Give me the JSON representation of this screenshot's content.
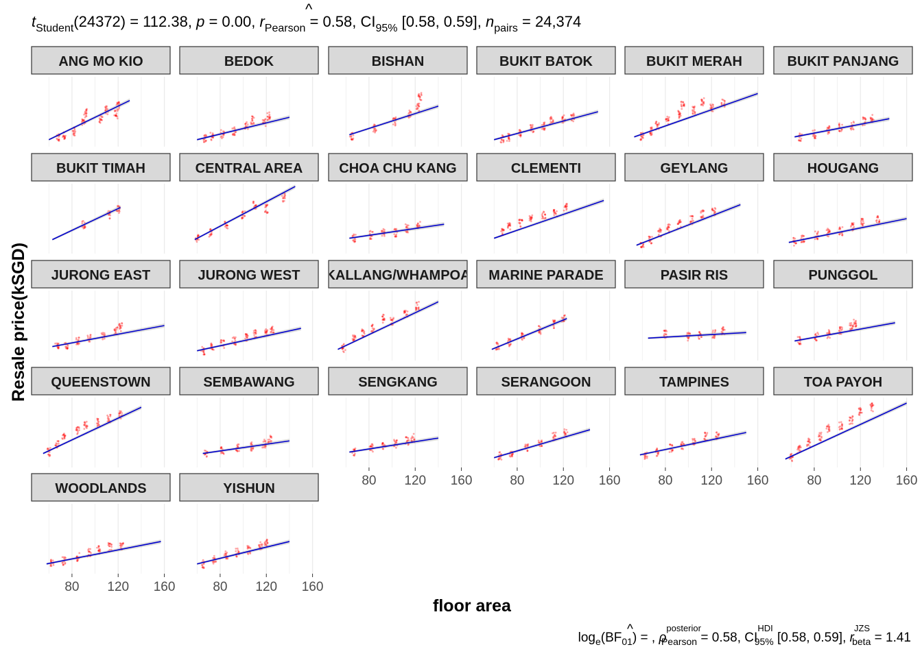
{
  "subtitle": {
    "t_symbol": "t",
    "t_sub": "Student",
    "part1": "(24372) = 112.38, ",
    "p_symbol": "p",
    "part2": " = 0.00, ",
    "r_symbol": "r",
    "r_hat": "^",
    "r_sub": "Pearson",
    "part3": " = 0.58, CI",
    "ci_sub": "95%",
    "part4": " [0.58, 0.59], ",
    "n_symbol": "n",
    "n_sub": "pairs",
    "part5": " = 24,374"
  },
  "caption": {
    "log_text": "log",
    "log_sub": "e",
    "bf_text": "(BF",
    "bf_sub": "01",
    "bf_rest": ") = , ",
    "rho_symbol": "ρ",
    "rho_hat": "^",
    "rho_sup": "posterior",
    "rho_sub": "Pearson",
    "part2": " = 0.58, CI",
    "ci_sup": "HDI",
    "ci_sub": "95%",
    "part3": " [0.58, 0.59], ",
    "r_symbol": "r",
    "r_sup": "JZS",
    "r_sub": "beta",
    "part4": " = 1.41"
  },
  "chart_data": {
    "type": "scatter",
    "xlabel": "floor area",
    "ylabel": "Resale price(kSGD)",
    "xlim": [
      45,
      165
    ],
    "x_ticks": [
      80,
      120,
      160
    ],
    "ylim": [
      0,
      1
    ],
    "point_color": "#ff0000",
    "line_color": "#0000cc",
    "strip_fill": "#d9d9d9",
    "grid_color": "#ebebeb",
    "facets": [
      {
        "name": "ANG MO KIO",
        "fit": {
          "x": [
            60,
            130
          ],
          "y": [
            0.1,
            0.66
          ]
        },
        "clusters": [
          {
            "x": 68,
            "y": 0.12
          },
          {
            "x": 73,
            "y": 0.16
          },
          {
            "x": 82,
            "y": 0.22
          },
          {
            "x": 90,
            "y": 0.34
          },
          {
            "x": 92,
            "y": 0.48
          },
          {
            "x": 105,
            "y": 0.4
          },
          {
            "x": 110,
            "y": 0.52
          },
          {
            "x": 118,
            "y": 0.46
          },
          {
            "x": 120,
            "y": 0.58
          }
        ]
      },
      {
        "name": "BEDOK",
        "fit": {
          "x": [
            60,
            140
          ],
          "y": [
            0.1,
            0.42
          ]
        },
        "clusters": [
          {
            "x": 67,
            "y": 0.12
          },
          {
            "x": 73,
            "y": 0.14
          },
          {
            "x": 82,
            "y": 0.18
          },
          {
            "x": 92,
            "y": 0.22
          },
          {
            "x": 103,
            "y": 0.3
          },
          {
            "x": 108,
            "y": 0.38
          },
          {
            "x": 118,
            "y": 0.34
          },
          {
            "x": 122,
            "y": 0.44
          }
        ]
      },
      {
        "name": "BISHAN",
        "fit": {
          "x": [
            63,
            140
          ],
          "y": [
            0.17,
            0.58
          ]
        },
        "clusters": [
          {
            "x": 65,
            "y": 0.16
          },
          {
            "x": 85,
            "y": 0.26
          },
          {
            "x": 102,
            "y": 0.36
          },
          {
            "x": 115,
            "y": 0.46
          },
          {
            "x": 122,
            "y": 0.56
          },
          {
            "x": 124,
            "y": 0.72
          }
        ]
      },
      {
        "name": "BUKIT BATOK",
        "fit": {
          "x": [
            60,
            150
          ],
          "y": [
            0.1,
            0.5
          ]
        },
        "clusters": [
          {
            "x": 67,
            "y": 0.11
          },
          {
            "x": 72,
            "y": 0.14
          },
          {
            "x": 83,
            "y": 0.2
          },
          {
            "x": 93,
            "y": 0.26
          },
          {
            "x": 103,
            "y": 0.3
          },
          {
            "x": 110,
            "y": 0.38
          },
          {
            "x": 120,
            "y": 0.4
          },
          {
            "x": 128,
            "y": 0.42
          }
        ]
      },
      {
        "name": "BUKIT MERAH",
        "fit": {
          "x": [
            53,
            160
          ],
          "y": [
            0.14,
            0.76
          ]
        },
        "clusters": [
          {
            "x": 60,
            "y": 0.15
          },
          {
            "x": 67,
            "y": 0.22
          },
          {
            "x": 73,
            "y": 0.3
          },
          {
            "x": 82,
            "y": 0.38
          },
          {
            "x": 92,
            "y": 0.46
          },
          {
            "x": 95,
            "y": 0.6
          },
          {
            "x": 105,
            "y": 0.52
          },
          {
            "x": 112,
            "y": 0.64
          },
          {
            "x": 120,
            "y": 0.56
          },
          {
            "x": 130,
            "y": 0.62
          }
        ]
      },
      {
        "name": "BUKIT PANJANG",
        "fit": {
          "x": [
            63,
            145
          ],
          "y": [
            0.14,
            0.4
          ]
        },
        "clusters": [
          {
            "x": 68,
            "y": 0.14
          },
          {
            "x": 80,
            "y": 0.18
          },
          {
            "x": 92,
            "y": 0.24
          },
          {
            "x": 103,
            "y": 0.28
          },
          {
            "x": 113,
            "y": 0.3
          },
          {
            "x": 123,
            "y": 0.36
          },
          {
            "x": 130,
            "y": 0.4
          }
        ]
      },
      {
        "name": "BUKIT TIMAH",
        "fit": {
          "x": [
            63,
            122
          ],
          "y": [
            0.2,
            0.66
          ]
        },
        "clusters": [
          {
            "x": 90,
            "y": 0.42
          },
          {
            "x": 112,
            "y": 0.56
          },
          {
            "x": 120,
            "y": 0.64
          }
        ]
      },
      {
        "name": "CENTRAL AREA",
        "fit": {
          "x": [
            58,
            145
          ],
          "y": [
            0.2,
            0.96
          ]
        },
        "clusters": [
          {
            "x": 60,
            "y": 0.22
          },
          {
            "x": 72,
            "y": 0.3
          },
          {
            "x": 85,
            "y": 0.42
          },
          {
            "x": 100,
            "y": 0.56
          },
          {
            "x": 110,
            "y": 0.7
          },
          {
            "x": 120,
            "y": 0.64
          },
          {
            "x": 135,
            "y": 0.8
          }
        ]
      },
      {
        "name": "CHOA CHU KANG",
        "fit": {
          "x": [
            63,
            145
          ],
          "y": [
            0.22,
            0.42
          ]
        },
        "clusters": [
          {
            "x": 67,
            "y": 0.22
          },
          {
            "x": 82,
            "y": 0.27
          },
          {
            "x": 92,
            "y": 0.3
          },
          {
            "x": 103,
            "y": 0.3
          },
          {
            "x": 113,
            "y": 0.36
          },
          {
            "x": 123,
            "y": 0.4
          }
        ]
      },
      {
        "name": "CLEMENTI",
        "fit": {
          "x": [
            60,
            155
          ],
          "y": [
            0.22,
            0.76
          ]
        },
        "clusters": [
          {
            "x": 67,
            "y": 0.3
          },
          {
            "x": 73,
            "y": 0.4
          },
          {
            "x": 83,
            "y": 0.44
          },
          {
            "x": 92,
            "y": 0.52
          },
          {
            "x": 103,
            "y": 0.54
          },
          {
            "x": 113,
            "y": 0.58
          },
          {
            "x": 122,
            "y": 0.66
          }
        ]
      },
      {
        "name": "GEYLANG",
        "fit": {
          "x": [
            55,
            145
          ],
          "y": [
            0.12,
            0.7
          ]
        },
        "clusters": [
          {
            "x": 60,
            "y": 0.14
          },
          {
            "x": 67,
            "y": 0.2
          },
          {
            "x": 75,
            "y": 0.3
          },
          {
            "x": 83,
            "y": 0.36
          },
          {
            "x": 92,
            "y": 0.42
          },
          {
            "x": 103,
            "y": 0.48
          },
          {
            "x": 112,
            "y": 0.56
          },
          {
            "x": 122,
            "y": 0.6
          }
        ]
      },
      {
        "name": "HOUGANG",
        "fit": {
          "x": [
            58,
            160
          ],
          "y": [
            0.16,
            0.5
          ]
        },
        "clusters": [
          {
            "x": 63,
            "y": 0.17
          },
          {
            "x": 70,
            "y": 0.22
          },
          {
            "x": 82,
            "y": 0.26
          },
          {
            "x": 92,
            "y": 0.3
          },
          {
            "x": 103,
            "y": 0.32
          },
          {
            "x": 113,
            "y": 0.38
          },
          {
            "x": 122,
            "y": 0.44
          },
          {
            "x": 135,
            "y": 0.48
          }
        ]
      },
      {
        "name": "JURONG EAST",
        "fit": {
          "x": [
            63,
            160
          ],
          "y": [
            0.2,
            0.5
          ]
        },
        "clusters": [
          {
            "x": 67,
            "y": 0.2
          },
          {
            "x": 75,
            "y": 0.22
          },
          {
            "x": 85,
            "y": 0.28
          },
          {
            "x": 95,
            "y": 0.32
          },
          {
            "x": 107,
            "y": 0.34
          },
          {
            "x": 118,
            "y": 0.42
          },
          {
            "x": 122,
            "y": 0.48
          }
        ]
      },
      {
        "name": "JURONG WEST",
        "fit": {
          "x": [
            60,
            150
          ],
          "y": [
            0.14,
            0.46
          ]
        },
        "clusters": [
          {
            "x": 65,
            "y": 0.14
          },
          {
            "x": 73,
            "y": 0.2
          },
          {
            "x": 82,
            "y": 0.24
          },
          {
            "x": 92,
            "y": 0.28
          },
          {
            "x": 103,
            "y": 0.32
          },
          {
            "x": 110,
            "y": 0.38
          },
          {
            "x": 120,
            "y": 0.4
          },
          {
            "x": 125,
            "y": 0.46
          }
        ]
      },
      {
        "name": "KALLANG/WHAMPOA",
        "fit": {
          "x": [
            53,
            140
          ],
          "y": [
            0.16,
            0.84
          ]
        },
        "clusters": [
          {
            "x": 58,
            "y": 0.18
          },
          {
            "x": 67,
            "y": 0.3
          },
          {
            "x": 75,
            "y": 0.4
          },
          {
            "x": 83,
            "y": 0.46
          },
          {
            "x": 92,
            "y": 0.6
          },
          {
            "x": 100,
            "y": 0.56
          },
          {
            "x": 112,
            "y": 0.66
          },
          {
            "x": 122,
            "y": 0.78
          }
        ]
      },
      {
        "name": "MARINE PARADE",
        "fit": {
          "x": [
            58,
            123
          ],
          "y": [
            0.16,
            0.6
          ]
        },
        "clusters": [
          {
            "x": 63,
            "y": 0.2
          },
          {
            "x": 73,
            "y": 0.26
          },
          {
            "x": 85,
            "y": 0.34
          },
          {
            "x": 100,
            "y": 0.44
          },
          {
            "x": 112,
            "y": 0.52
          },
          {
            "x": 120,
            "y": 0.6
          }
        ]
      },
      {
        "name": "PASIR RIS",
        "fit": {
          "x": [
            65,
            150
          ],
          "y": [
            0.32,
            0.4
          ]
        },
        "clusters": [
          {
            "x": 80,
            "y": 0.38
          },
          {
            "x": 100,
            "y": 0.34
          },
          {
            "x": 110,
            "y": 0.36
          },
          {
            "x": 122,
            "y": 0.38
          },
          {
            "x": 130,
            "y": 0.42
          }
        ]
      },
      {
        "name": "PUNGGOL",
        "fit": {
          "x": [
            63,
            150
          ],
          "y": [
            0.28,
            0.54
          ]
        },
        "clusters": [
          {
            "x": 67,
            "y": 0.28
          },
          {
            "x": 82,
            "y": 0.34
          },
          {
            "x": 92,
            "y": 0.38
          },
          {
            "x": 103,
            "y": 0.42
          },
          {
            "x": 112,
            "y": 0.48
          },
          {
            "x": 115,
            "y": 0.54
          }
        ]
      },
      {
        "name": "QUEENSTOWN",
        "fit": {
          "x": [
            55,
            140
          ],
          "y": [
            0.2,
            0.86
          ]
        },
        "clusters": [
          {
            "x": 60,
            "y": 0.22
          },
          {
            "x": 67,
            "y": 0.34
          },
          {
            "x": 73,
            "y": 0.44
          },
          {
            "x": 85,
            "y": 0.52
          },
          {
            "x": 92,
            "y": 0.6
          },
          {
            "x": 103,
            "y": 0.64
          },
          {
            "x": 112,
            "y": 0.7
          },
          {
            "x": 122,
            "y": 0.76
          }
        ]
      },
      {
        "name": "SEMBAWANG",
        "fit": {
          "x": [
            65,
            140
          ],
          "y": [
            0.2,
            0.38
          ]
        },
        "clusters": [
          {
            "x": 68,
            "y": 0.2
          },
          {
            "x": 82,
            "y": 0.24
          },
          {
            "x": 95,
            "y": 0.28
          },
          {
            "x": 108,
            "y": 0.3
          },
          {
            "x": 118,
            "y": 0.34
          },
          {
            "x": 123,
            "y": 0.4
          }
        ]
      },
      {
        "name": "SENGKANG",
        "fit": {
          "x": [
            63,
            140
          ],
          "y": [
            0.22,
            0.42
          ]
        },
        "clusters": [
          {
            "x": 67,
            "y": 0.22
          },
          {
            "x": 82,
            "y": 0.28
          },
          {
            "x": 93,
            "y": 0.32
          },
          {
            "x": 103,
            "y": 0.34
          },
          {
            "x": 113,
            "y": 0.38
          },
          {
            "x": 118,
            "y": 0.42
          }
        ]
      },
      {
        "name": "SERANGOON",
        "fit": {
          "x": [
            60,
            143
          ],
          "y": [
            0.14,
            0.54
          ]
        },
        "clusters": [
          {
            "x": 65,
            "y": 0.16
          },
          {
            "x": 75,
            "y": 0.2
          },
          {
            "x": 88,
            "y": 0.28
          },
          {
            "x": 100,
            "y": 0.36
          },
          {
            "x": 112,
            "y": 0.44
          },
          {
            "x": 122,
            "y": 0.5
          }
        ]
      },
      {
        "name": "TAMPINES",
        "fit": {
          "x": [
            58,
            150
          ],
          "y": [
            0.18,
            0.5
          ]
        },
        "clusters": [
          {
            "x": 63,
            "y": 0.18
          },
          {
            "x": 73,
            "y": 0.22
          },
          {
            "x": 85,
            "y": 0.28
          },
          {
            "x": 95,
            "y": 0.32
          },
          {
            "x": 105,
            "y": 0.36
          },
          {
            "x": 115,
            "y": 0.44
          },
          {
            "x": 125,
            "y": 0.46
          }
        ]
      },
      {
        "name": "TOA PAYOH",
        "fit": {
          "x": [
            55,
            160
          ],
          "y": [
            0.12,
            0.92
          ]
        },
        "clusters": [
          {
            "x": 60,
            "y": 0.14
          },
          {
            "x": 67,
            "y": 0.26
          },
          {
            "x": 75,
            "y": 0.36
          },
          {
            "x": 85,
            "y": 0.44
          },
          {
            "x": 92,
            "y": 0.56
          },
          {
            "x": 103,
            "y": 0.6
          },
          {
            "x": 112,
            "y": 0.68
          },
          {
            "x": 120,
            "y": 0.8
          },
          {
            "x": 130,
            "y": 0.86
          }
        ]
      },
      {
        "name": "WOODLANDS",
        "fit": {
          "x": [
            58,
            157
          ],
          "y": [
            0.14,
            0.46
          ]
        },
        "clusters": [
          {
            "x": 63,
            "y": 0.14
          },
          {
            "x": 73,
            "y": 0.18
          },
          {
            "x": 85,
            "y": 0.24
          },
          {
            "x": 95,
            "y": 0.3
          },
          {
            "x": 103,
            "y": 0.34
          },
          {
            "x": 113,
            "y": 0.38
          },
          {
            "x": 123,
            "y": 0.4
          }
        ]
      },
      {
        "name": "YISHUN",
        "fit": {
          "x": [
            60,
            140
          ],
          "y": [
            0.14,
            0.46
          ]
        },
        "clusters": [
          {
            "x": 65,
            "y": 0.14
          },
          {
            "x": 75,
            "y": 0.2
          },
          {
            "x": 85,
            "y": 0.26
          },
          {
            "x": 95,
            "y": 0.3
          },
          {
            "x": 105,
            "y": 0.34
          },
          {
            "x": 115,
            "y": 0.4
          },
          {
            "x": 120,
            "y": 0.44
          }
        ]
      }
    ]
  }
}
